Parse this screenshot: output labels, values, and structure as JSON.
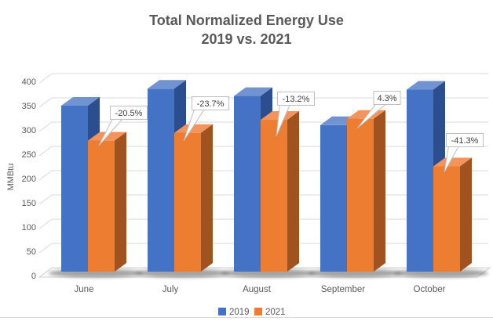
{
  "title": {
    "line1": "Total Normalized Energy Use",
    "line2": "2019 vs. 2021"
  },
  "chart_data": {
    "type": "bar",
    "style": "3d-clustered-column",
    "title": "Total Normalized Energy Use 2019 vs. 2021",
    "categories": [
      "June",
      "July",
      "August",
      "September",
      "October"
    ],
    "series": [
      {
        "name": "2019",
        "color": "#4472C4",
        "color_top": "#7293D2",
        "color_side": "#2C4E8F",
        "values": [
          350,
          385,
          370,
          310,
          383
        ]
      },
      {
        "name": "2021",
        "color": "#ED7D31",
        "color_top": "#F2945B",
        "color_side": "#A0521F",
        "values": [
          278,
          294,
          321,
          323,
          225
        ]
      }
    ],
    "data_labels": [
      "-20.5%",
      "-23.7%",
      "-13.2%",
      "4.3%",
      "-41.3%"
    ],
    "data_labels_meaning": "percent change 2021 vs 2019",
    "xlabel": "",
    "ylabel": "MMBtu",
    "ylim": [
      0,
      400
    ],
    "ytick_step": 50,
    "yticks": [
      0,
      50,
      100,
      150,
      200,
      250,
      300,
      350,
      400
    ],
    "grid": true,
    "legend_position": "bottom"
  },
  "colors": {
    "background": "#FFFFFF",
    "gridline": "#D9D9D9",
    "floor_fill": "#FAFAFA",
    "floor_edge": "#D0D0D0",
    "axis_text": "#595959",
    "title_text": "#595959",
    "legend_text": "#595959",
    "callout_bg": "#FFFFFF",
    "callout_border": "#BFBFBF",
    "callout_text": "#404040",
    "shadow": "#3A3A3A",
    "bottom_rule": "#D9D9D9"
  }
}
